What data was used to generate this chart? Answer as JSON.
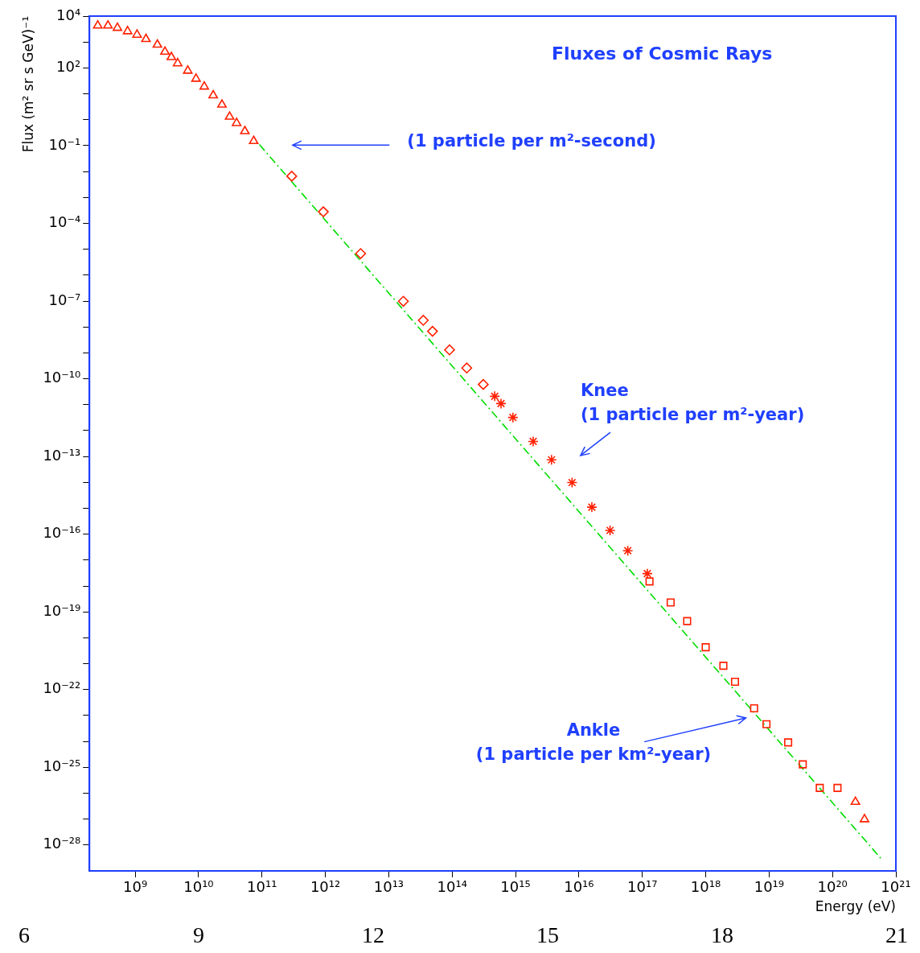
{
  "chart_data": {
    "type": "scatter",
    "title": "Fluxes of Cosmic Rays",
    "xlabel": "Energy (eV)",
    "ylabel": "Flux (m² sr s GeV)⁻¹",
    "log": "xy",
    "grid": false,
    "legend": false,
    "xlim": [
      190000000.0,
      1e+21
    ],
    "xticks": [
      {
        "value": 1000000000.0,
        "label": "10⁹"
      },
      {
        "value": 10000000000.0,
        "label": "10¹⁰"
      },
      {
        "value": 100000000000.0,
        "label": "10¹¹"
      },
      {
        "value": 1000000000000.0,
        "label": "10¹²"
      },
      {
        "value": 10000000000000.0,
        "label": "10¹³"
      },
      {
        "value": 100000000000000.0,
        "label": "10¹⁴"
      },
      {
        "value": 1000000000000000.0,
        "label": "10¹⁵"
      },
      {
        "value": 1e+16,
        "label": "10¹⁶"
      },
      {
        "value": 1e+17,
        "label": "10¹⁷"
      },
      {
        "value": 1e+18,
        "label": "10¹⁸"
      },
      {
        "value": 1e+19,
        "label": "10¹⁹"
      },
      {
        "value": 1e+20,
        "label": "10²⁰"
      },
      {
        "value": 1e+21,
        "label": "10²¹"
      }
    ],
    "ylim": [
      1e-29,
      10000.0
    ],
    "yticks": [
      {
        "value": 10000.0,
        "label": "10⁴"
      },
      {
        "value": 1000.0,
        "label": null
      },
      {
        "value": 100.0,
        "label": "10²"
      },
      {
        "value": 10.0,
        "label": null
      },
      {
        "value": 1,
        "label": null
      },
      {
        "value": 0.1,
        "label": "10⁻¹"
      },
      {
        "value": 0.01,
        "label": null
      },
      {
        "value": 0.001,
        "label": null
      },
      {
        "value": 0.0001,
        "label": "10⁻⁴"
      },
      {
        "value": 1e-05,
        "label": null
      },
      {
        "value": 1e-06,
        "label": null
      },
      {
        "value": 1e-07,
        "label": "10⁻⁷"
      },
      {
        "value": 1e-08,
        "label": null
      },
      {
        "value": 1e-09,
        "label": null
      },
      {
        "value": 1e-10,
        "label": "10⁻¹⁰"
      },
      {
        "value": 1e-11,
        "label": null
      },
      {
        "value": 1e-12,
        "label": null
      },
      {
        "value": 1e-13,
        "label": "10⁻¹³"
      },
      {
        "value": 1e-14,
        "label": null
      },
      {
        "value": 1e-15,
        "label": null
      },
      {
        "value": 1e-16,
        "label": "10⁻¹⁶"
      },
      {
        "value": 1e-17,
        "label": null
      },
      {
        "value": 1e-18,
        "label": null
      },
      {
        "value": 1e-19,
        "label": "10⁻¹⁹"
      },
      {
        "value": 1e-20,
        "label": null
      },
      {
        "value": 1e-21,
        "label": null
      },
      {
        "value": 1e-22,
        "label": "10⁻²²"
      },
      {
        "value": 1e-23,
        "label": null
      },
      {
        "value": 1e-24,
        "label": null
      },
      {
        "value": 1e-25,
        "label": "10⁻²⁵"
      },
      {
        "value": 1e-26,
        "label": null
      },
      {
        "value": 1e-27,
        "label": null
      },
      {
        "value": 1e-28,
        "label": "10⁻²⁸"
      }
    ],
    "series": [
      {
        "marker": "triangle",
        "color": "#ff2000",
        "x": [
          257000000.0,
          372000000.0,
          525000000.0,
          759000000.0,
          1070000000.0,
          1480000000.0,
          2240000000.0,
          2950000000.0,
          3720000000.0,
          4680000000.0,
          6760000000.0,
          9120000000.0,
          12300000000.0,
          17000000000.0,
          23400000000.0,
          30900000000.0,
          39800000000.0,
          53700000000.0,
          74100000000.0
        ],
        "values": [
          4300.0,
          4300.0,
          3500.0,
          2600.0,
          1900.0,
          1300.0,
          790.0,
          420.0,
          260.0,
          150.0,
          78,
          38,
          19,
          8.7,
          3.8,
          1.3,
          0.74,
          0.36,
          0.15
        ]
      },
      {
        "marker": "diamond",
        "color": "#ff2000",
        "x": [
          295000000000.0,
          930000000000.0,
          3600000000000.0,
          17000000000000.0,
          35000000000000.0,
          49000000000000.0,
          91000000000000.0,
          170000000000000.0,
          310000000000000.0
        ],
        "values": [
          0.0066,
          0.00028,
          6.8e-06,
          9.8e-08,
          1.8e-08,
          6.8e-09,
          1.3e-09,
          2.6e-10,
          6e-11
        ]
      },
      {
        "marker": "cross",
        "color": "#ff2000",
        "x": [
          470000000000000.0,
          590000000000000.0,
          910000000000000.0,
          1900000000000000.0,
          3700000000000000.0,
          7800000000000000.0,
          1.6e+16,
          3.1e+16,
          5.9e+16,
          1.2e+17
        ],
        "values": [
          2.1e-11,
          1.1e-11,
          3.2e-12,
          3.8e-13,
          7.4e-14,
          9.8e-15,
          1.1e-15,
          1.4e-16,
          2.3e-17,
          3e-18
        ]
      },
      {
        "marker": "square",
        "color": "#ff2000",
        "x": [
          1.3e+17,
          2.8e+17,
          5.1e+17,
          1e+18,
          1.9e+18,
          2.9e+18,
          5.8e+18,
          9.1e+18,
          2e+19,
          3.4e+19,
          6.3e+19,
          1.2e+20
        ],
        "values": [
          1.5e-18,
          2.3e-19,
          4.4e-20,
          4.3e-21,
          8.3e-22,
          2e-22,
          1.9e-23,
          4.6e-24,
          9.1e-25,
          1.3e-25,
          1.6e-26,
          1.6e-26
        ]
      },
      {
        "marker": "triangle",
        "color": "#ff2000",
        "x": [
          2.3e+20,
          3.2e+20
        ],
        "values": [
          4.6e-27,
          9.8e-28
        ]
      },
      {
        "type": "line",
        "marker": "none",
        "line_style": "dashed",
        "color": "#00dd00",
        "x": [
          91000000000.0,
          5.9e+20
        ],
        "values": [
          0.11,
          2.9e-29
        ]
      }
    ],
    "annotations": [
      "(1 particle per m²-second)",
      "Knee\n(1 particle per m²-year)",
      "Ankle\n(1 particle per km²-year)",
      "6 9 12 15 18 21"
    ]
  }
}
